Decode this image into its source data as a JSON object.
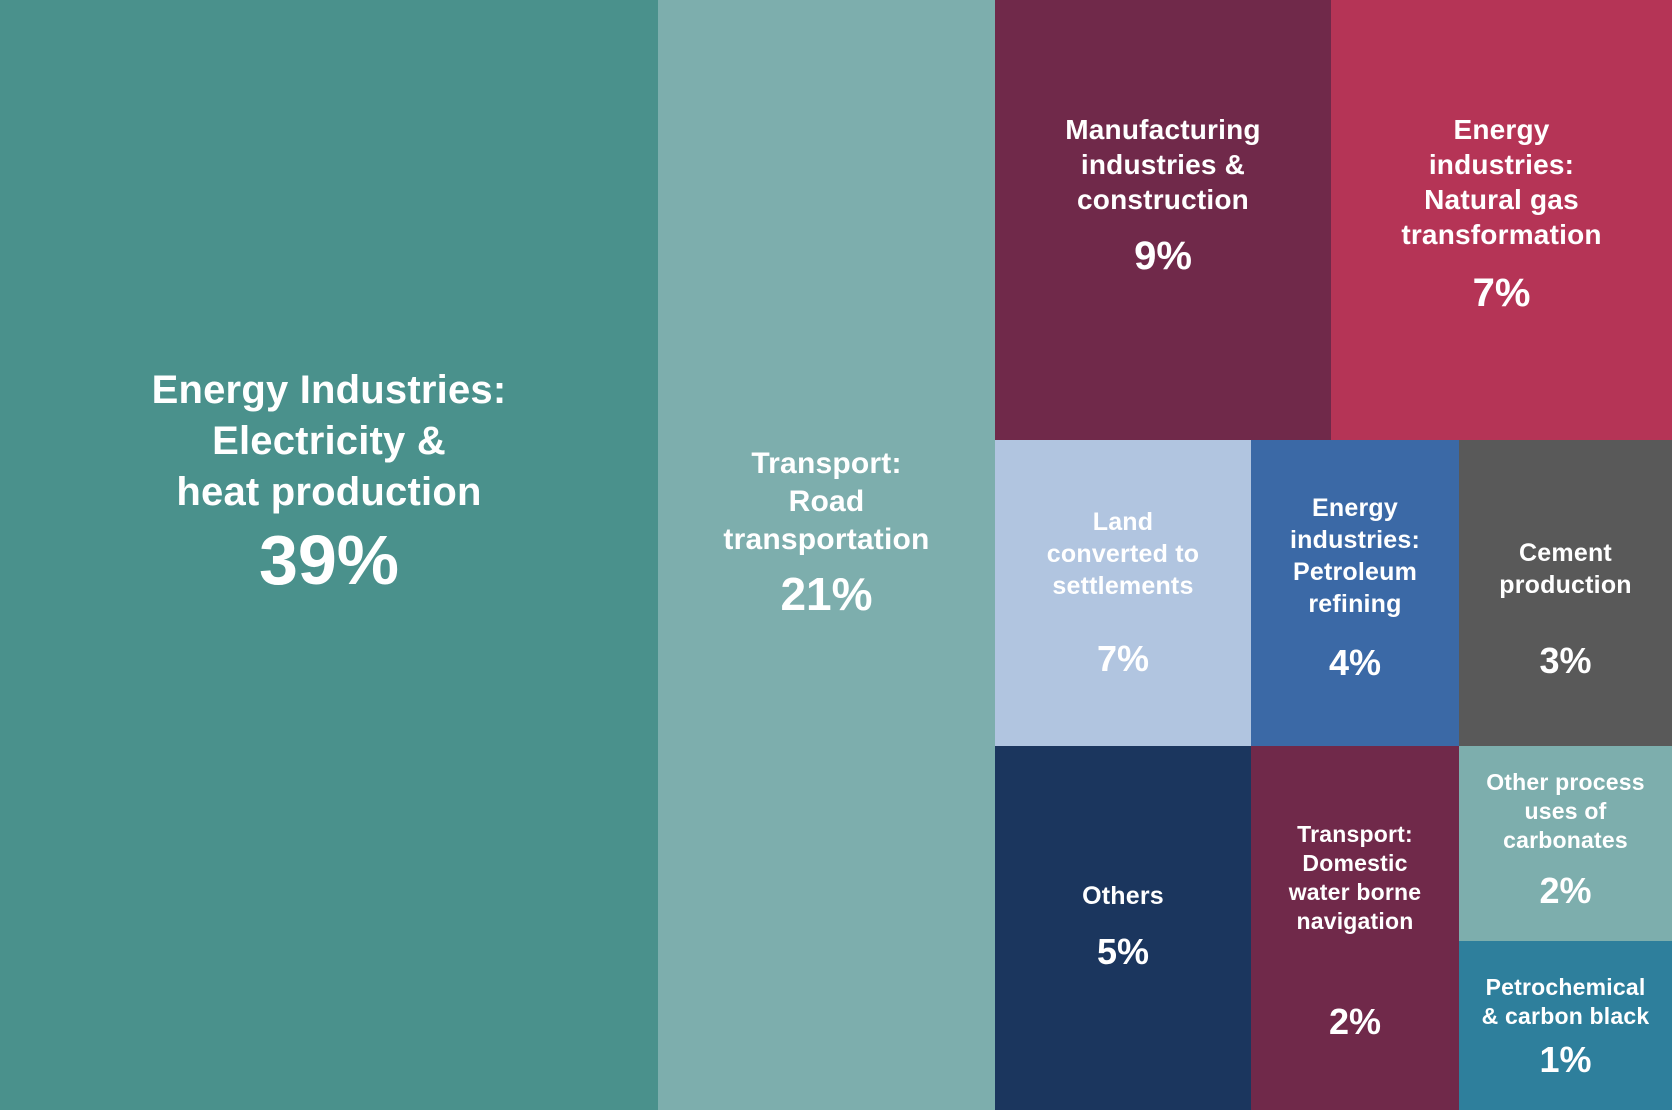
{
  "chart_data": {
    "type": "treemap",
    "items": [
      {
        "label": "Energy Industries:\nElectricity &\nheat production",
        "value": 39,
        "value_text": "39%",
        "color": "#4A918C"
      },
      {
        "label": "Transport:\nRoad\ntransportation",
        "value": 21,
        "value_text": "21%",
        "color": "#7DAEAD"
      },
      {
        "label": "Manufacturing\nindustries &\nconstruction",
        "value": 9,
        "value_text": "9%",
        "color": "#70294A"
      },
      {
        "label": "Energy\nindustries:\nNatural gas\ntransformation",
        "value": 7,
        "value_text": "7%",
        "color": "#B53456"
      },
      {
        "label": "Land\nconverted to\nsettlements",
        "value": 7,
        "value_text": "7%",
        "color": "#B1C5E0"
      },
      {
        "label": "Energy\nindustries:\nPetroleum\nrefining",
        "value": 4,
        "value_text": "4%",
        "color": "#3B69A6"
      },
      {
        "label": "Cement\nproduction",
        "value": 3,
        "value_text": "3%",
        "color": "#595959"
      },
      {
        "label": "Others",
        "value": 5,
        "value_text": "5%",
        "color": "#1B365E"
      },
      {
        "label": "Transport:\nDomestic\nwater borne\nnavigation",
        "value": 2,
        "value_text": "2%",
        "color": "#70294A"
      },
      {
        "label": "Other process\nuses of\ncarbonates",
        "value": 2,
        "value_text": "2%",
        "color": "#7DAEAD"
      },
      {
        "label": "Petrochemical\n& carbon black",
        "value": 1,
        "value_text": "1%",
        "color": "#2E7F9C"
      }
    ]
  }
}
